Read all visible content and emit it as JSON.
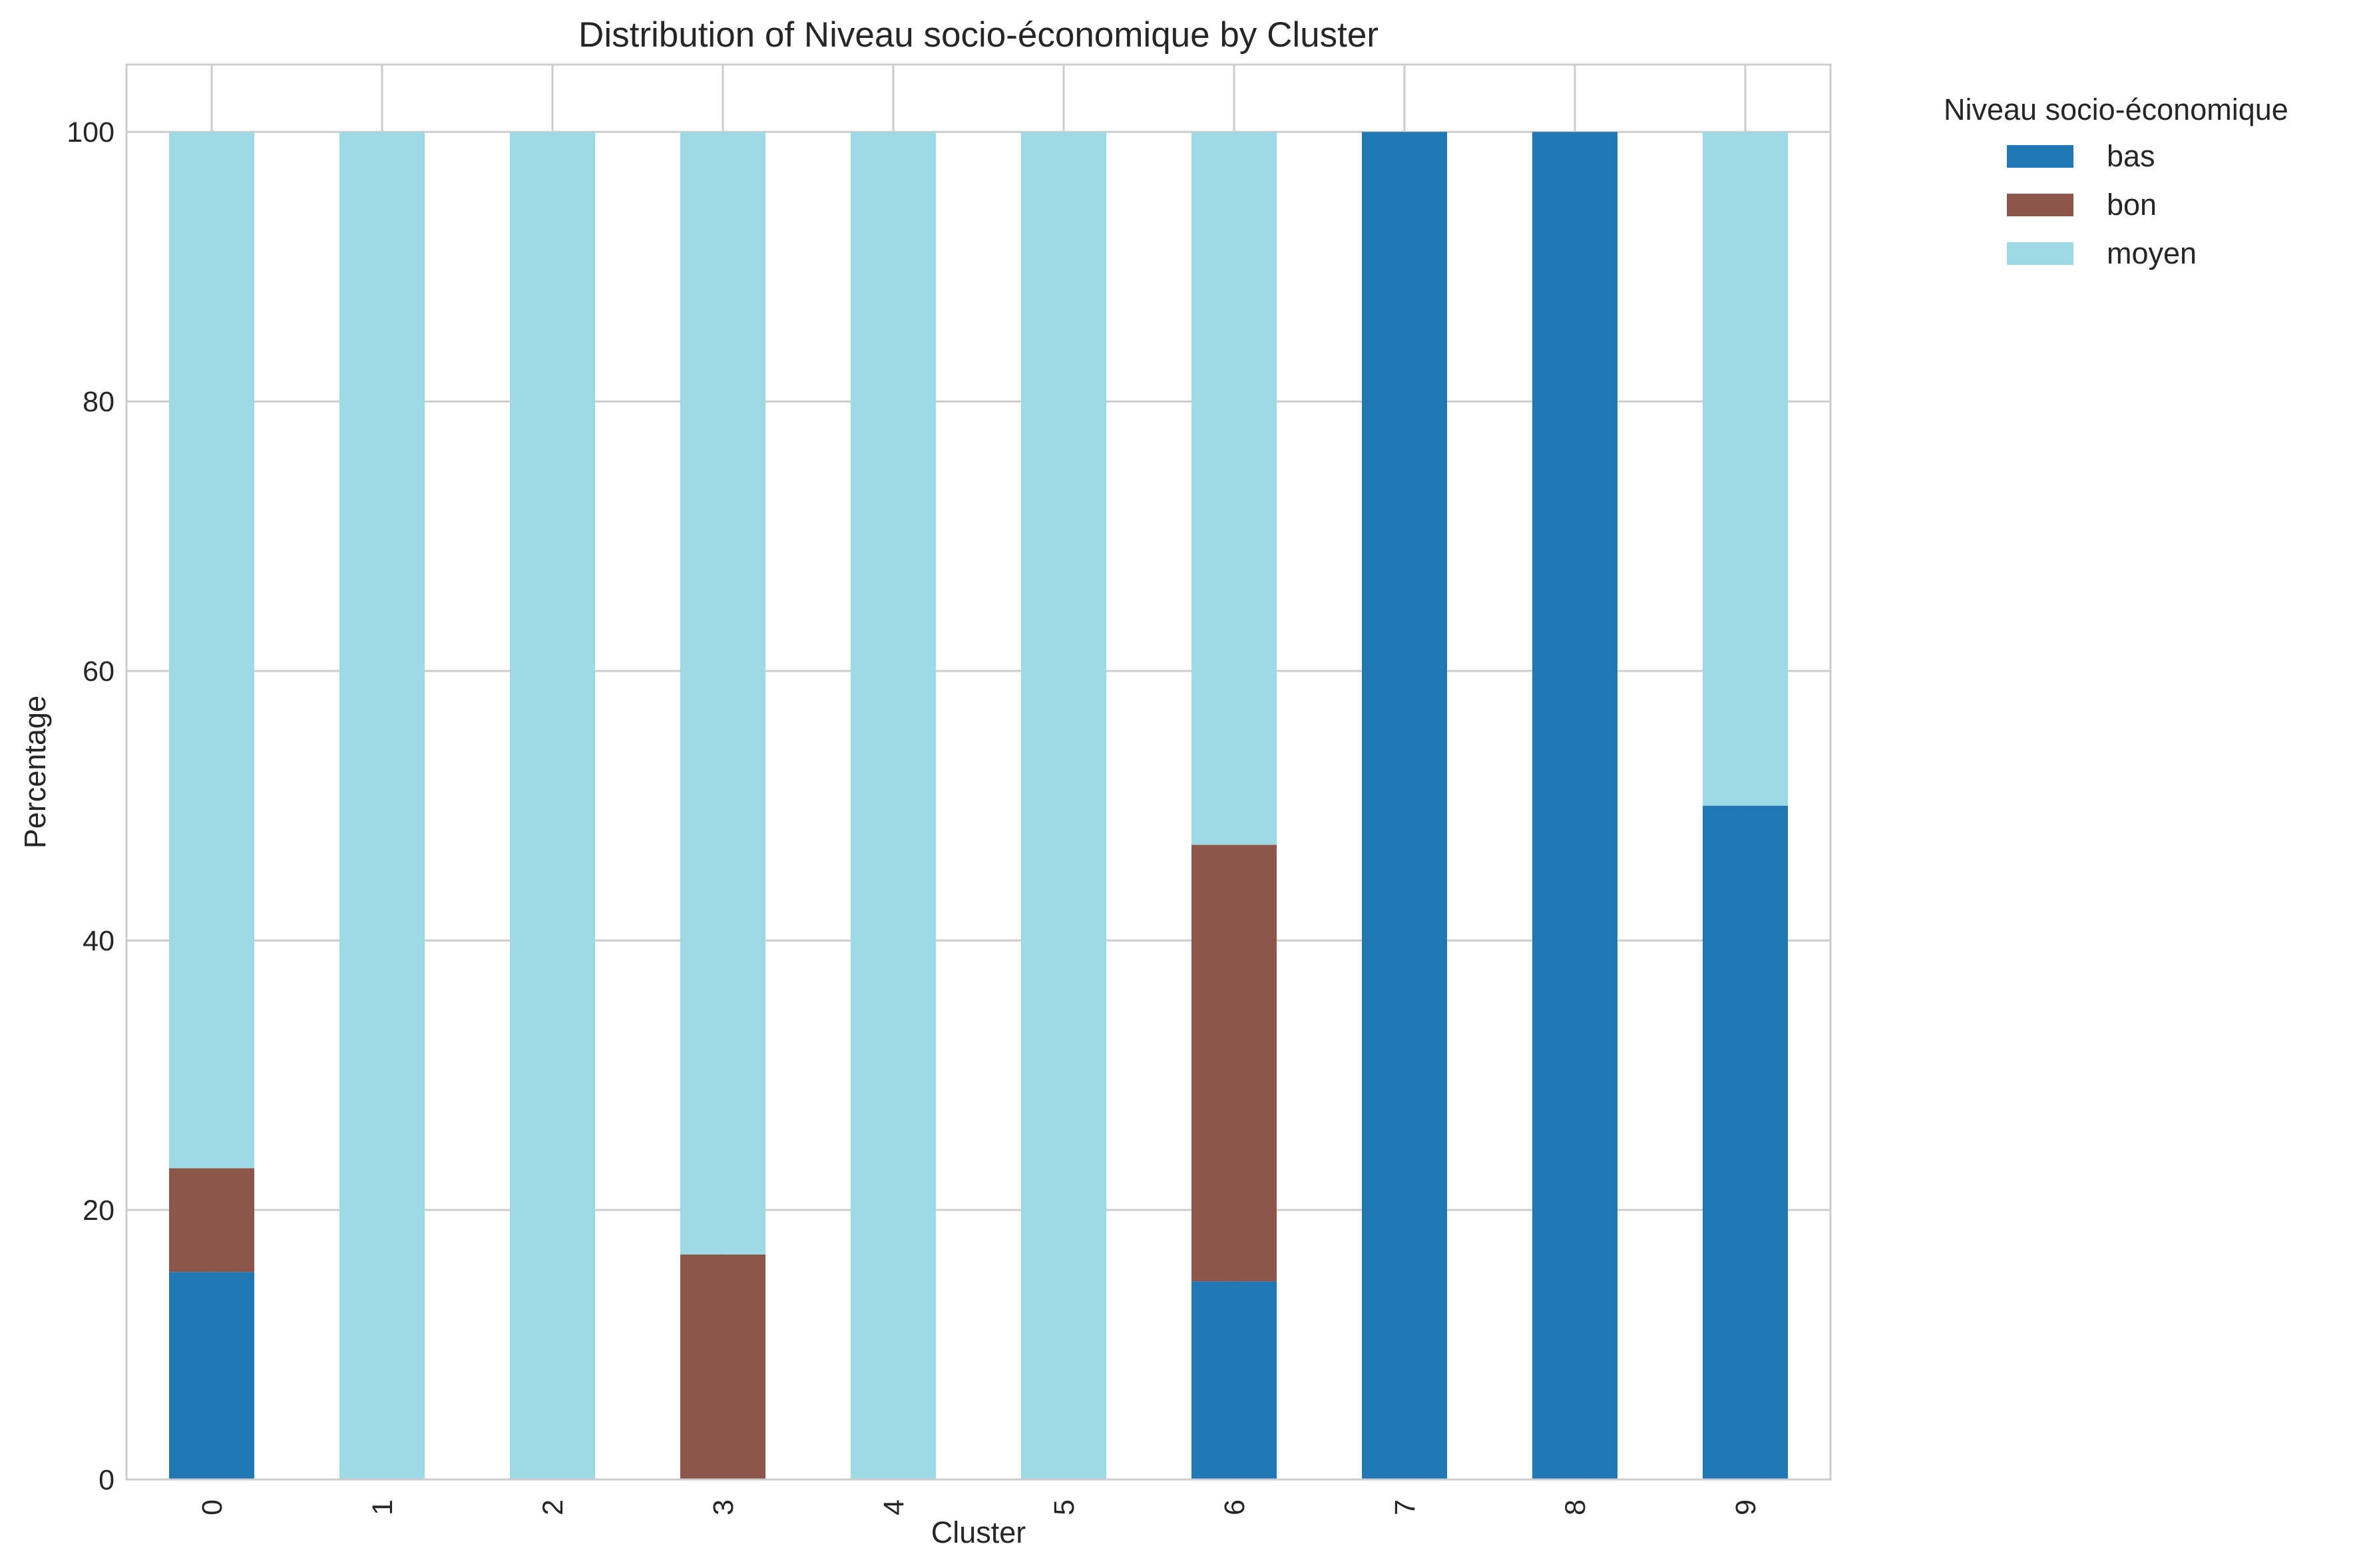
{
  "chart_data": {
    "type": "bar",
    "stacked": true,
    "title": "Distribution of Niveau socio-économique by Cluster",
    "xlabel": "Cluster",
    "ylabel": "Percentage",
    "categories": [
      "0",
      "1",
      "2",
      "3",
      "4",
      "5",
      "6",
      "7",
      "8",
      "9"
    ],
    "ylim": [
      0,
      105
    ],
    "yticks": [
      0,
      20,
      40,
      60,
      80,
      100
    ],
    "grid": true,
    "legend": {
      "title": "Niveau socio-économique",
      "placement": "outside-top-right"
    },
    "series": [
      {
        "name": "bas",
        "color": "#1f77b4",
        "values": [
          15.4,
          0,
          0,
          0,
          0,
          0,
          14.7,
          100,
          100,
          50
        ]
      },
      {
        "name": "bon",
        "color": "#8c564b",
        "values": [
          7.7,
          0,
          0,
          16.7,
          0,
          0,
          32.4,
          0,
          0,
          0
        ]
      },
      {
        "name": "moyen",
        "color": "#9edae5",
        "values": [
          76.9,
          100,
          100,
          83.3,
          100,
          100,
          52.9,
          0,
          0,
          50
        ]
      }
    ]
  }
}
